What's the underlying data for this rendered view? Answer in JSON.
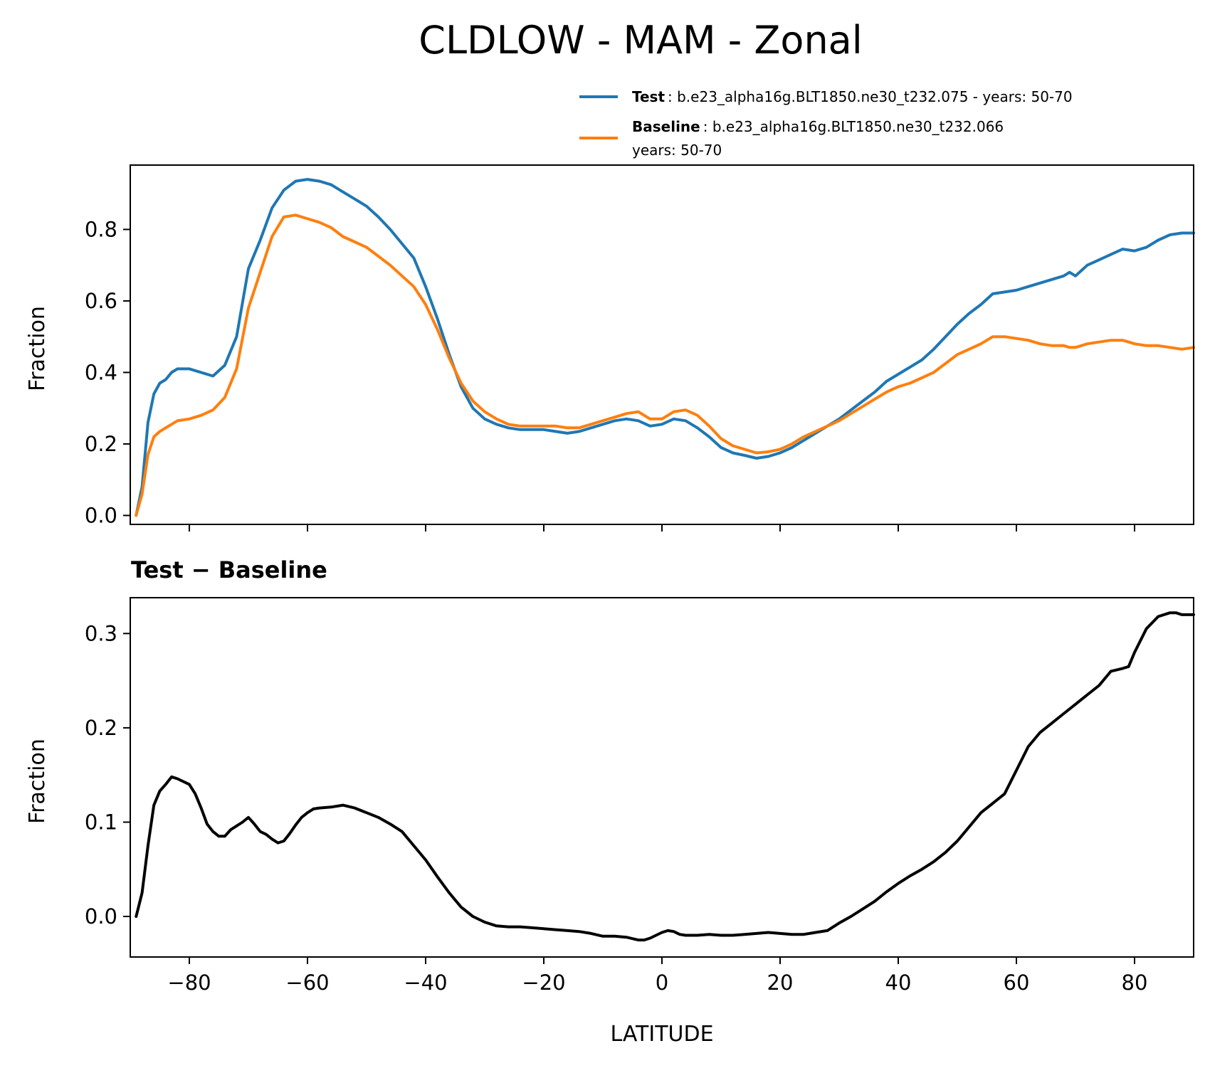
{
  "figure": {
    "title": "CLDLOW - MAM - Zonal"
  },
  "legend": [
    {
      "label_bold": "Test",
      "label_text": ": b.e23_alpha16g.BLT1850.ne30_t232.075 - years: 50-70",
      "label_text2": "",
      "color": "#1f77b4"
    },
    {
      "label_bold": "Baseline",
      "label_text": ": b.e23_alpha16g.BLT1850.ne30_t232.066",
      "label_text2": "years: 50-70",
      "color": "#ff7f0e"
    }
  ],
  "chart_data": [
    {
      "type": "line",
      "title": "",
      "xlabel": "",
      "ylabel": "Fraction",
      "xlim": [
        -90,
        90
      ],
      "ylim": [
        -0.025,
        0.98
      ],
      "xticks": [
        -80,
        -60,
        -40,
        -20,
        0,
        20,
        40,
        60,
        80
      ],
      "xticks_labeled": false,
      "yticks": [
        0.0,
        0.2,
        0.4,
        0.6,
        0.8
      ],
      "ytick_labels": [
        "0.0",
        "0.2",
        "0.4",
        "0.6",
        "0.8"
      ],
      "x": [
        -89,
        -88,
        -87,
        -86,
        -85,
        -84,
        -83,
        -82,
        -80,
        -78,
        -76,
        -74,
        -72,
        -70,
        -68,
        -66,
        -64,
        -62,
        -60,
        -58,
        -56,
        -54,
        -52,
        -50,
        -48,
        -46,
        -44,
        -42,
        -40,
        -38,
        -36,
        -34,
        -32,
        -30,
        -28,
        -26,
        -24,
        -22,
        -20,
        -18,
        -16,
        -14,
        -12,
        -10,
        -8,
        -6,
        -4,
        -2,
        0,
        2,
        4,
        6,
        8,
        10,
        12,
        14,
        16,
        18,
        20,
        22,
        24,
        26,
        28,
        30,
        32,
        34,
        36,
        38,
        40,
        42,
        44,
        46,
        48,
        50,
        52,
        54,
        56,
        58,
        60,
        62,
        64,
        66,
        68,
        69,
        70,
        72,
        74,
        76,
        78,
        80,
        82,
        84,
        86,
        88,
        90
      ],
      "series": [
        {
          "name": "Test",
          "color": "#1f77b4",
          "values": [
            0.0,
            0.08,
            0.26,
            0.34,
            0.37,
            0.38,
            0.4,
            0.41,
            0.41,
            0.4,
            0.39,
            0.42,
            0.5,
            0.69,
            0.77,
            0.86,
            0.91,
            0.935,
            0.94,
            0.935,
            0.925,
            0.905,
            0.885,
            0.865,
            0.835,
            0.8,
            0.76,
            0.72,
            0.64,
            0.55,
            0.45,
            0.36,
            0.3,
            0.27,
            0.255,
            0.245,
            0.24,
            0.24,
            0.24,
            0.235,
            0.23,
            0.235,
            0.245,
            0.255,
            0.265,
            0.27,
            0.265,
            0.25,
            0.255,
            0.27,
            0.265,
            0.245,
            0.22,
            0.19,
            0.175,
            0.168,
            0.16,
            0.165,
            0.175,
            0.19,
            0.21,
            0.23,
            0.25,
            0.27,
            0.295,
            0.32,
            0.345,
            0.375,
            0.395,
            0.415,
            0.435,
            0.465,
            0.5,
            0.535,
            0.565,
            0.59,
            0.62,
            0.625,
            0.63,
            0.64,
            0.65,
            0.66,
            0.67,
            0.68,
            0.67,
            0.7,
            0.715,
            0.73,
            0.745,
            0.74,
            0.75,
            0.77,
            0.785,
            0.79,
            0.79
          ]
        },
        {
          "name": "Baseline",
          "color": "#ff7f0e",
          "values": [
            0.0,
            0.06,
            0.17,
            0.22,
            0.235,
            0.245,
            0.255,
            0.265,
            0.27,
            0.28,
            0.295,
            0.33,
            0.41,
            0.58,
            0.68,
            0.78,
            0.835,
            0.84,
            0.83,
            0.82,
            0.805,
            0.78,
            0.765,
            0.75,
            0.725,
            0.7,
            0.67,
            0.64,
            0.59,
            0.52,
            0.44,
            0.37,
            0.32,
            0.29,
            0.27,
            0.255,
            0.25,
            0.25,
            0.25,
            0.25,
            0.245,
            0.245,
            0.255,
            0.265,
            0.275,
            0.285,
            0.29,
            0.27,
            0.27,
            0.29,
            0.295,
            0.28,
            0.25,
            0.215,
            0.195,
            0.185,
            0.175,
            0.178,
            0.185,
            0.2,
            0.22,
            0.235,
            0.25,
            0.265,
            0.285,
            0.305,
            0.325,
            0.345,
            0.36,
            0.37,
            0.385,
            0.4,
            0.425,
            0.45,
            0.465,
            0.48,
            0.5,
            0.5,
            0.495,
            0.49,
            0.48,
            0.475,
            0.475,
            0.47,
            0.47,
            0.48,
            0.485,
            0.49,
            0.49,
            0.48,
            0.475,
            0.475,
            0.47,
            0.465,
            0.47
          ]
        }
      ]
    },
    {
      "type": "line",
      "title": "Test − Baseline",
      "xlabel": "LATITUDE",
      "ylabel": "Fraction",
      "xlim": [
        -90,
        90
      ],
      "ylim": [
        -0.043,
        0.338
      ],
      "xticks": [
        -80,
        -60,
        -40,
        -20,
        0,
        20,
        40,
        60,
        80
      ],
      "xtick_labels": [
        "−80",
        "−60",
        "−40",
        "−20",
        "0",
        "20",
        "40",
        "60",
        "80"
      ],
      "xticks_labeled": true,
      "yticks": [
        0.0,
        0.1,
        0.2,
        0.3
      ],
      "ytick_labels": [
        "0.0",
        "0.1",
        "0.2",
        "0.3"
      ],
      "x": [
        -89,
        -88,
        -87,
        -86,
        -85,
        -84,
        -83,
        -82,
        -80,
        -79,
        -78,
        -77,
        -76,
        -75,
        -74,
        -73,
        -72,
        -71,
        -70,
        -69,
        -68,
        -67,
        -66,
        -65,
        -64,
        -63,
        -62,
        -61,
        -60,
        -59,
        -58,
        -56,
        -54,
        -52,
        -50,
        -48,
        -46,
        -44,
        -42,
        -40,
        -38,
        -36,
        -34,
        -32,
        -30,
        -28,
        -26,
        -24,
        -22,
        -20,
        -18,
        -16,
        -14,
        -12,
        -10,
        -8,
        -6,
        -4,
        -3,
        -2,
        0,
        1,
        2,
        3,
        4,
        6,
        8,
        10,
        12,
        14,
        16,
        18,
        20,
        22,
        24,
        26,
        28,
        30,
        32,
        34,
        36,
        38,
        40,
        42,
        44,
        46,
        48,
        50,
        52,
        54,
        56,
        58,
        60,
        62,
        64,
        66,
        68,
        70,
        72,
        74,
        76,
        78,
        79,
        80,
        82,
        84,
        86,
        87,
        88,
        89,
        90
      ],
      "series": [
        {
          "name": "Test − Baseline",
          "color": "#000000",
          "values": [
            0.0,
            0.025,
            0.075,
            0.118,
            0.133,
            0.14,
            0.148,
            0.146,
            0.14,
            0.13,
            0.115,
            0.098,
            0.09,
            0.085,
            0.085,
            0.092,
            0.096,
            0.1,
            0.105,
            0.098,
            0.09,
            0.087,
            0.082,
            0.078,
            0.08,
            0.088,
            0.097,
            0.105,
            0.11,
            0.114,
            0.115,
            0.116,
            0.118,
            0.115,
            0.11,
            0.105,
            0.098,
            0.09,
            0.075,
            0.06,
            0.042,
            0.025,
            0.01,
            0.0,
            -0.006,
            -0.01,
            -0.011,
            -0.011,
            -0.012,
            -0.013,
            -0.014,
            -0.015,
            -0.016,
            -0.018,
            -0.021,
            -0.021,
            -0.022,
            -0.025,
            -0.025,
            -0.023,
            -0.017,
            -0.015,
            -0.016,
            -0.019,
            -0.02,
            -0.02,
            -0.019,
            -0.02,
            -0.02,
            -0.019,
            -0.018,
            -0.017,
            -0.018,
            -0.019,
            -0.019,
            -0.017,
            -0.015,
            -0.007,
            0.0,
            0.008,
            0.016,
            0.026,
            0.035,
            0.043,
            0.05,
            0.058,
            0.068,
            0.08,
            0.095,
            0.11,
            0.12,
            0.13,
            0.155,
            0.18,
            0.195,
            0.205,
            0.215,
            0.225,
            0.235,
            0.245,
            0.26,
            0.263,
            0.265,
            0.28,
            0.305,
            0.318,
            0.322,
            0.322,
            0.32,
            0.32,
            0.32
          ]
        }
      ]
    }
  ]
}
